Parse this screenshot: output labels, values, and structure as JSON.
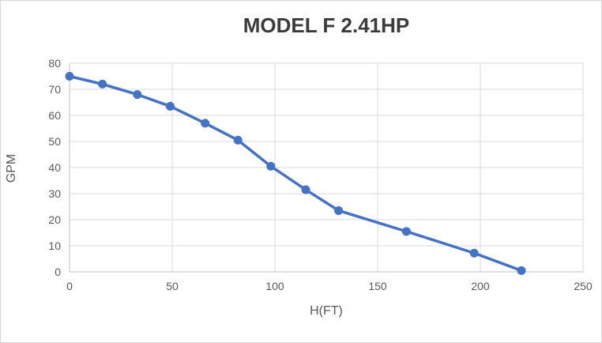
{
  "chart_data": {
    "type": "line",
    "title": "MODEL F 2.41HP",
    "xlabel": "H(FT)",
    "ylabel": "GPM",
    "x": [
      0,
      16,
      33,
      49,
      66,
      82,
      98,
      115,
      131,
      164,
      197,
      220
    ],
    "y": [
      75,
      72,
      68,
      63.5,
      57,
      50.5,
      40.5,
      31.5,
      23.5,
      15.5,
      7.2,
      0.5
    ],
    "xlim": [
      0,
      250
    ],
    "ylim": [
      0,
      80
    ],
    "x_ticks": [
      0,
      50,
      100,
      150,
      200,
      250
    ],
    "y_ticks": [
      0,
      10,
      20,
      30,
      40,
      50,
      60,
      70,
      80
    ],
    "grid": true,
    "legend": "none",
    "line_color": "#4472C4",
    "marker": "circle"
  },
  "colors": {
    "series_blue": "#4472C4",
    "gridline": "#D9D9D9",
    "axis_line": "#BFBFBF",
    "tick_text": "#595959",
    "title_text": "#3B3B3B",
    "canvas_border": "#D7D7D7",
    "background": "#FFFFFF"
  }
}
